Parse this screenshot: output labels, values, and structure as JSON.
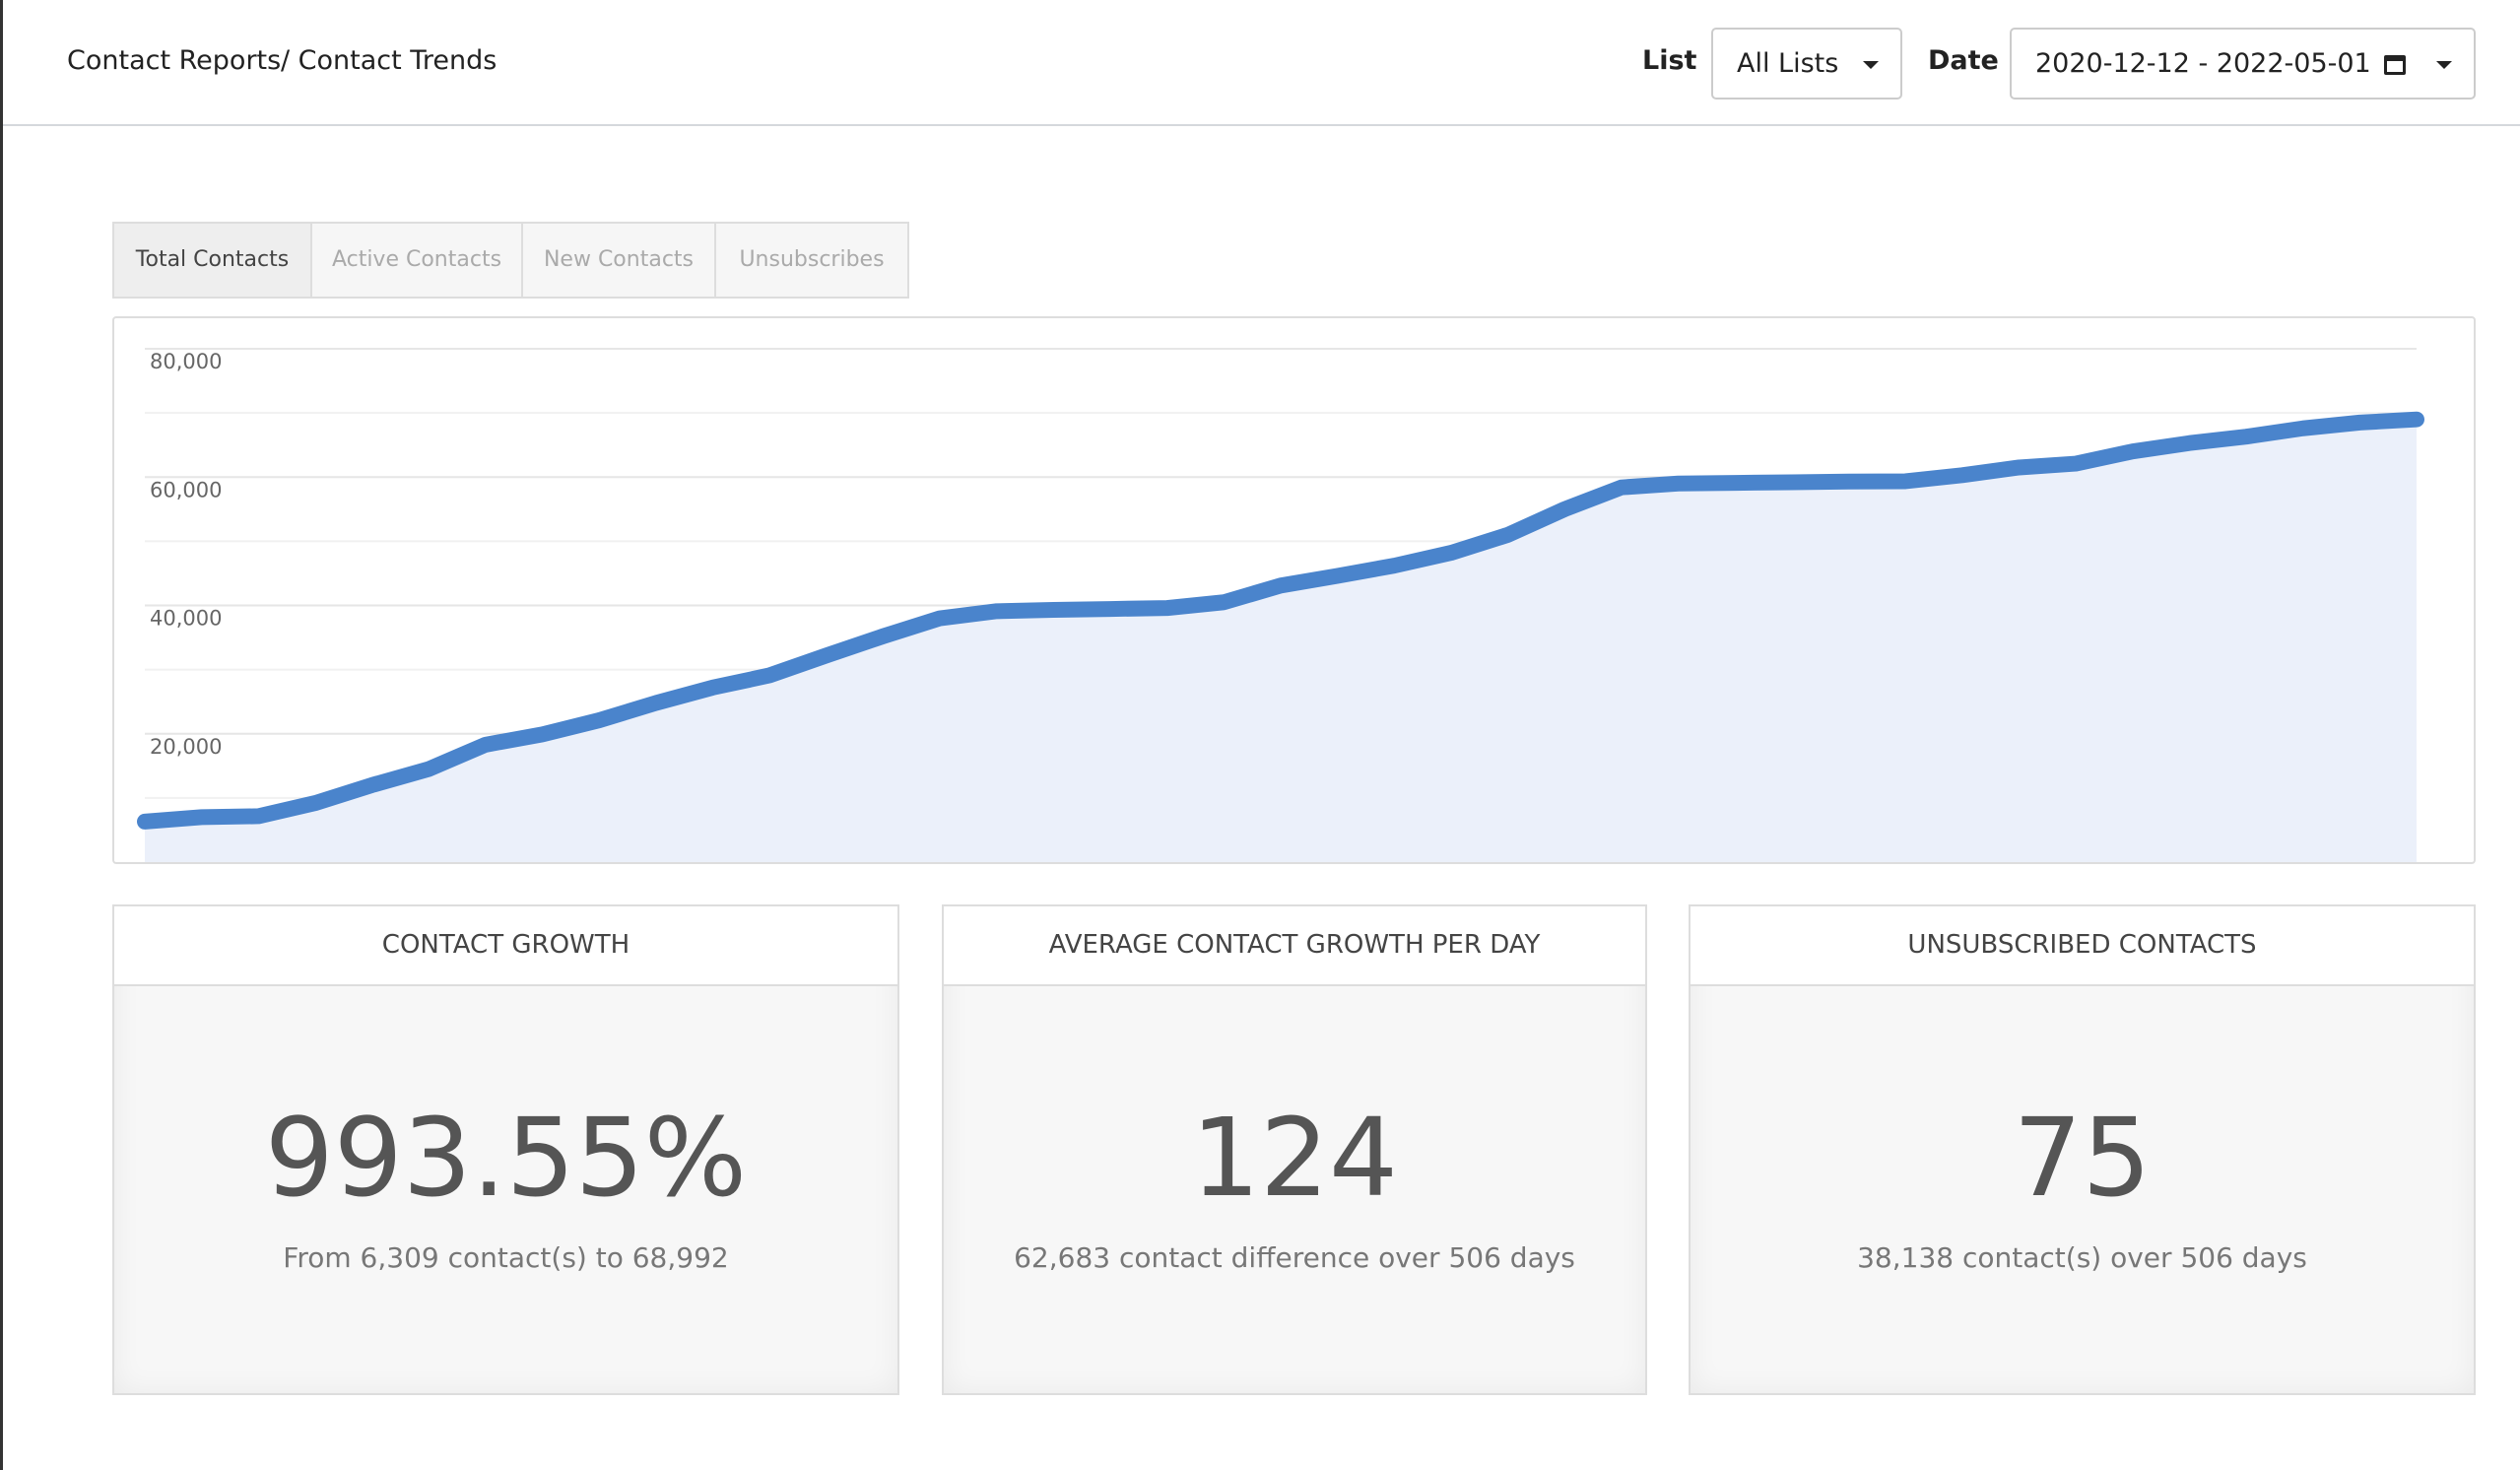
{
  "header": {
    "breadcrumb": [
      "Contact Reports",
      "/ Contact Trends"
    ],
    "list_label": "List",
    "list_value": "All Lists",
    "date_label": "Date",
    "date_value": "2020-12-12 - 2022-05-01"
  },
  "tabs": [
    "Total Contacts",
    "Active Contacts",
    "New Contacts",
    "Unsubscribes"
  ],
  "chart_data": {
    "type": "area",
    "values": [
      6309,
      7000,
      7150,
      9200,
      12000,
      14500,
      18300,
      19900,
      22100,
      24800,
      27200,
      29100,
      32200,
      35200,
      38000,
      39100,
      39300,
      39450,
      39600,
      40500,
      43100,
      44600,
      46200,
      48200,
      51000,
      55000,
      58400,
      59000,
      59100,
      59200,
      59300,
      59350,
      60300,
      61500,
      62100,
      64000,
      65300,
      66300,
      67600,
      68500,
      68992
    ],
    "color": "#4a84cc",
    "fill": "#ebf0fa",
    "ylim": [
      0,
      80000
    ],
    "yticks": [
      {
        "value": 20000,
        "label": "20,000"
      },
      {
        "value": 40000,
        "label": "40,000"
      },
      {
        "value": 60000,
        "label": "60,000"
      },
      {
        "value": 80000,
        "label": "80,000"
      }
    ],
    "grid": true
  },
  "cards": [
    {
      "title": "CONTACT GROWTH",
      "value": "993.55%",
      "caption": "From 6,309 contact(s) to 68,992"
    },
    {
      "title": "AVERAGE CONTACT GROWTH PER DAY",
      "value": "124",
      "caption": "62,683 contact difference over 506 days"
    },
    {
      "title": "UNSUBSCRIBED CONTACTS",
      "value": "75",
      "caption": "38,138 contact(s) over 506 days"
    }
  ]
}
